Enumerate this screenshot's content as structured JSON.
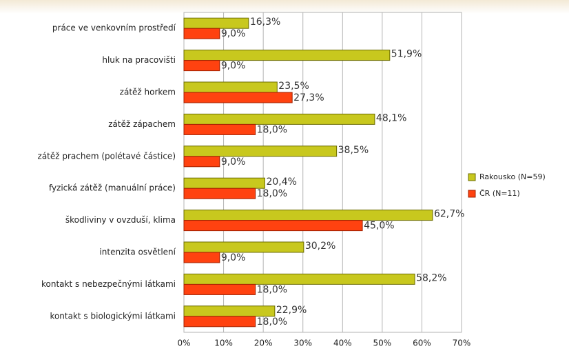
{
  "chart_data": {
    "type": "hbar",
    "categories": [
      "práce ve venkovním prostředí",
      "hluk na pracovišti",
      "zátěž horkem",
      "zátěž zápachem",
      "zátěž prachem (polétavé částice)",
      "fyzická zátěž (manuální práce)",
      "škodliviny v ovzduší, klima",
      "intenzita osvětlení",
      "kontakt s nebezpečnými látkami",
      "kontakt s biologickými látkami"
    ],
    "series": [
      {
        "name": "Rakousko (N=59)",
        "color": "#c8c81e",
        "values": [
          16.3,
          51.9,
          23.5,
          48.1,
          38.5,
          20.4,
          62.7,
          30.2,
          58.2,
          22.9
        ],
        "value_labels": [
          "16,3%",
          "51,9%",
          "23,5%",
          "48,1%",
          "38,5%",
          "20,4%",
          "62,7%",
          "30,2%",
          "58,2%",
          "22,9%"
        ]
      },
      {
        "name": "ČR (N=11)",
        "color": "#ff4210",
        "values": [
          9.0,
          9.0,
          27.3,
          18.0,
          9.0,
          18.0,
          45.0,
          9.0,
          18.0,
          18.0
        ],
        "value_labels": [
          "9,0%",
          "9,0%",
          "27,3%",
          "18,0%",
          "9,0%",
          "18,0%",
          "45,0%",
          "9,0%",
          "18,0%",
          "18,0%"
        ]
      }
    ],
    "xlim": [
      0,
      70
    ],
    "xticks": [
      {
        "value": 0,
        "label": "0%"
      },
      {
        "value": 10,
        "label": "10%"
      },
      {
        "value": 20,
        "label": "20%"
      },
      {
        "value": 30,
        "label": "30%"
      },
      {
        "value": 40,
        "label": "40%"
      },
      {
        "value": 50,
        "label": "50%"
      },
      {
        "value": 60,
        "label": "60%"
      },
      {
        "value": 70,
        "label": "70%"
      }
    ],
    "grid": true,
    "legend": "right"
  }
}
